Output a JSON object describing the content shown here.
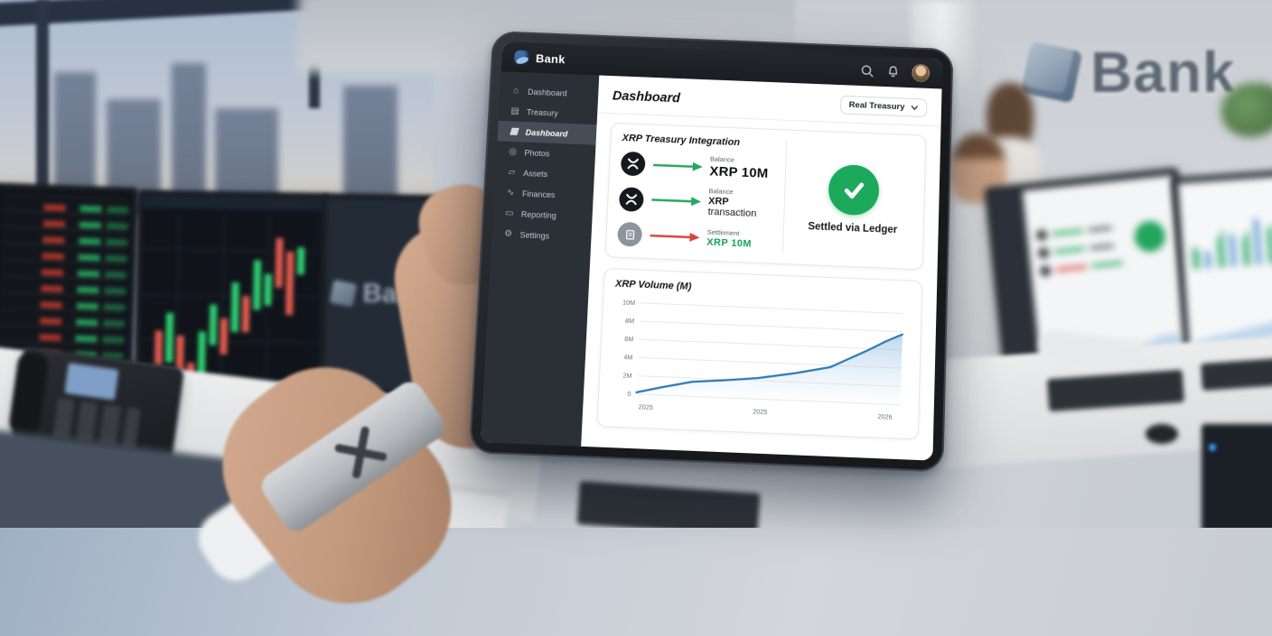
{
  "scene": {
    "wall_logo": "Bank",
    "monitor_logo": "Bank"
  },
  "tablet": {
    "topbar": {
      "brand": "Bank",
      "icons": [
        "search-icon",
        "bell-icon",
        "user-avatar"
      ]
    },
    "sidebar": {
      "items": [
        {
          "label": "Dashboard",
          "icon": "home-icon",
          "active": false
        },
        {
          "label": "Treasury",
          "icon": "treasury-icon",
          "active": false
        },
        {
          "label": "Dashboard",
          "icon": "dashboard-icon",
          "active": true
        },
        {
          "label": "Photos",
          "icon": "photos-icon",
          "active": false
        },
        {
          "label": "Assets",
          "icon": "assets-icon",
          "active": false
        },
        {
          "label": "Finances",
          "icon": "finances-icon",
          "active": false
        },
        {
          "label": "Reporting",
          "icon": "reporting-icon",
          "active": false
        },
        {
          "label": "Settings",
          "icon": "settings-icon",
          "active": false
        }
      ]
    },
    "header": {
      "title": "Dashboard",
      "treasury_selector": "Real Treasury"
    },
    "integration_card": {
      "title": "XRP Treasury Integration",
      "rows": [
        {
          "icon": "xrp-coin-icon",
          "arrow_color": "#27a75f",
          "label": "Balance",
          "value_strong": "XRP 10M",
          "value_rest": ""
        },
        {
          "icon": "xrp-coin-icon",
          "arrow_color": "#27a75f",
          "label": "Balance",
          "value_strong": "XRP",
          "value_rest": " transaction"
        },
        {
          "icon": "ledger-icon",
          "arrow_color": "#d8453c",
          "label": "Settlement",
          "value_strong": "XRP 10M",
          "value_rest": ""
        }
      ],
      "status": {
        "icon": "check-circle-icon",
        "text": "Settled via Ledger"
      }
    },
    "chart_card": {
      "title": "XRP Volume (M)"
    }
  },
  "chart_data": {
    "type": "area",
    "title": "XRP Volume (M)",
    "xlabel": "",
    "ylabel": "",
    "ylim": [
      0,
      10
    ],
    "y_ticks": [
      "10M",
      "8M",
      "6M",
      "4M",
      "2M",
      "0"
    ],
    "x_ticks": [
      "2025",
      "2025",
      "2026"
    ],
    "x_tick_pos_pct": [
      1,
      47,
      97
    ],
    "x_pct": [
      0,
      10,
      21,
      33,
      46,
      60,
      73,
      80,
      87,
      94,
      100
    ],
    "values": [
      0.2,
      0.9,
      1.6,
      1.9,
      2.3,
      3.0,
      3.8,
      4.8,
      5.8,
      6.9,
      7.7
    ],
    "grid": true,
    "legend": "none",
    "line_color": "#2e7cb5",
    "fill_top": "rgba(125,175,218,0.50)",
    "fill_bottom": "rgba(190,215,238,0.04)"
  }
}
